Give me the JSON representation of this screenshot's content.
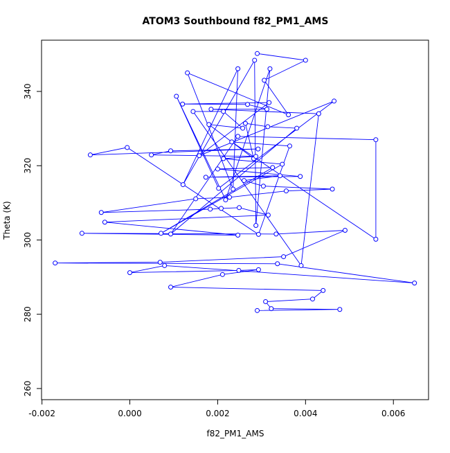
{
  "chart_data": {
    "type": "line",
    "title": "ATOM3 Southbound f82_PM1_AMS",
    "xlabel": "f82_PM1_AMS",
    "ylabel": "Theta (K)",
    "x": [
      0.0029,
      0.004,
      0.00306,
      0.00361,
      0.00131,
      0.00235,
      0.00246,
      0.00121,
      0.00284,
      0.00287,
      0.00319,
      0.00218,
      0.00106,
      0.00202,
      0.00465,
      0.00158,
      0.00317,
      0.0012,
      0.00268,
      0.00312,
      0.00185,
      0.0043,
      0.0039,
      0.00144,
      0.00213,
      0.00257,
      0.0018,
      0.00282,
      0.00263,
      0.00314,
      0.0038,
      0.00093,
      0.00246,
      0.0056,
      0.0056,
      0.00232,
      0.00364,
      0.00293,
      -6e-05,
      -0.0009,
      0.00292,
      0.00093,
      0.00049,
      0.00287,
      0.00213,
      0.00347,
      0.00071,
      0.00325,
      0.002,
      0.00388,
      0.00173,
      0.00342,
      0.0026,
      0.00304,
      0.00461,
      0.00356,
      0.00227,
      0.0015,
      -0.00065,
      0.00183,
      0.00208,
      0.00249,
      0.00315,
      -0.00057,
      0.00246,
      -0.00109,
      0.00333,
      0.0049,
      0.0035,
      0.00069,
      -0.0017,
      0.00336,
      0.00648,
      0.00079,
      0.0,
      0.00248,
      0.00293,
      0.00211,
      0.00093,
      0.0044,
      0.00416,
      0.00309,
      0.00322,
      0.00478,
      0.0029
    ],
    "values": [
      350.2,
      348.4,
      343.0,
      333.7,
      345.0,
      313.7,
      346.1,
      314.9,
      348.4,
      303.9,
      346.1,
      310.8,
      338.7,
      313.9,
      337.4,
      322.7,
      337.0,
      336.6,
      336.5,
      335.2,
      335.2,
      334.0,
      293.1,
      334.6,
      334.6,
      330.1,
      331.1,
      321.9,
      331.4,
      330.5,
      330.1,
      301.6,
      327.9,
      327.0,
      300.2,
      326.4,
      325.3,
      301.5,
      324.9,
      322.9,
      324.5,
      324.0,
      322.9,
      322.5,
      321.9,
      320.4,
      301.8,
      319.5,
      319.1,
      317.1,
      316.9,
      317.3,
      316.0,
      314.5,
      313.7,
      313.2,
      311.5,
      311.1,
      307.4,
      308.3,
      308.5,
      308.7,
      306.7,
      304.8,
      301.3,
      301.8,
      301.6,
      302.6,
      295.5,
      294.0,
      293.8,
      293.6,
      288.4,
      293.1,
      291.2,
      291.8,
      292.0,
      290.7,
      287.3,
      286.4,
      284.1,
      283.4,
      281.5,
      281.3,
      281.0
    ],
    "color": "#0000ff",
    "xlim": [
      -0.00201,
      0.0068
    ],
    "ylim": [
      257.0,
      353.8
    ],
    "xticks": [
      -0.002,
      {
        "value": 0,
        "label": "0.000"
      },
      0.002,
      0.004,
      0.006
    ],
    "yticks": [
      260,
      280,
      300,
      320,
      340
    ]
  }
}
